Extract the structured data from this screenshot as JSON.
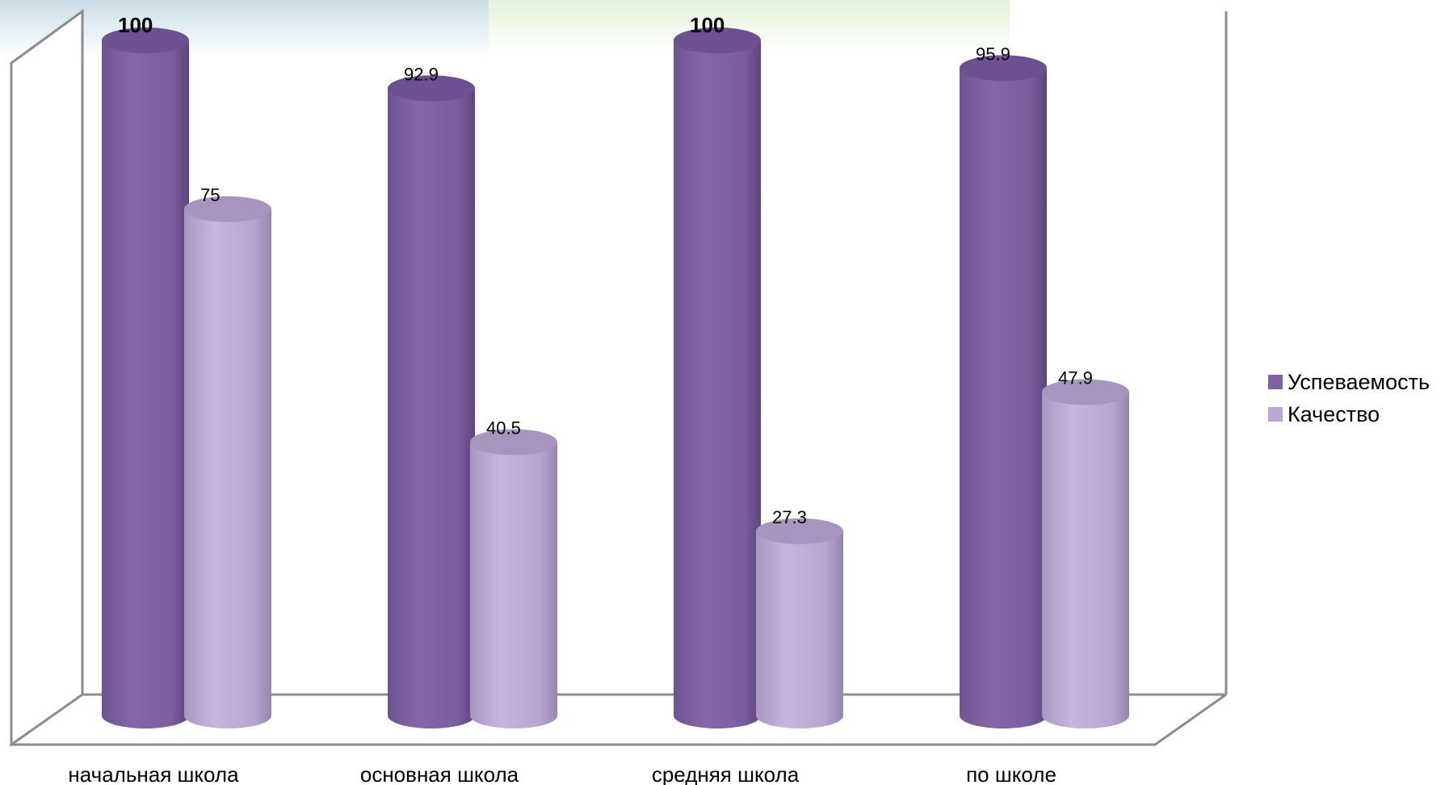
{
  "chart_data": {
    "type": "bar",
    "categories": [
      "начальная школа",
      "основная школа",
      "средняя школа",
      "по школе"
    ],
    "series": [
      {
        "name": "Успеваемость",
        "values": [
          100,
          92.9,
          100,
          95.9
        ],
        "color": "#7f62a2",
        "label_bold": [
          true,
          false,
          true,
          false
        ]
      },
      {
        "name": "Качество",
        "values": [
          75,
          40.5,
          27.3,
          47.9
        ],
        "color": "#b9a8d1",
        "label_bold": [
          false,
          false,
          false,
          false
        ]
      }
    ],
    "data_labels": [
      [
        "100",
        "92.9",
        "100",
        "95.9"
      ],
      [
        "75",
        "40.5",
        "27.3",
        "47.9"
      ]
    ],
    "ylim": [
      0,
      100
    ],
    "legend_position": "right",
    "style": "3d-cylinder",
    "grid": false
  }
}
